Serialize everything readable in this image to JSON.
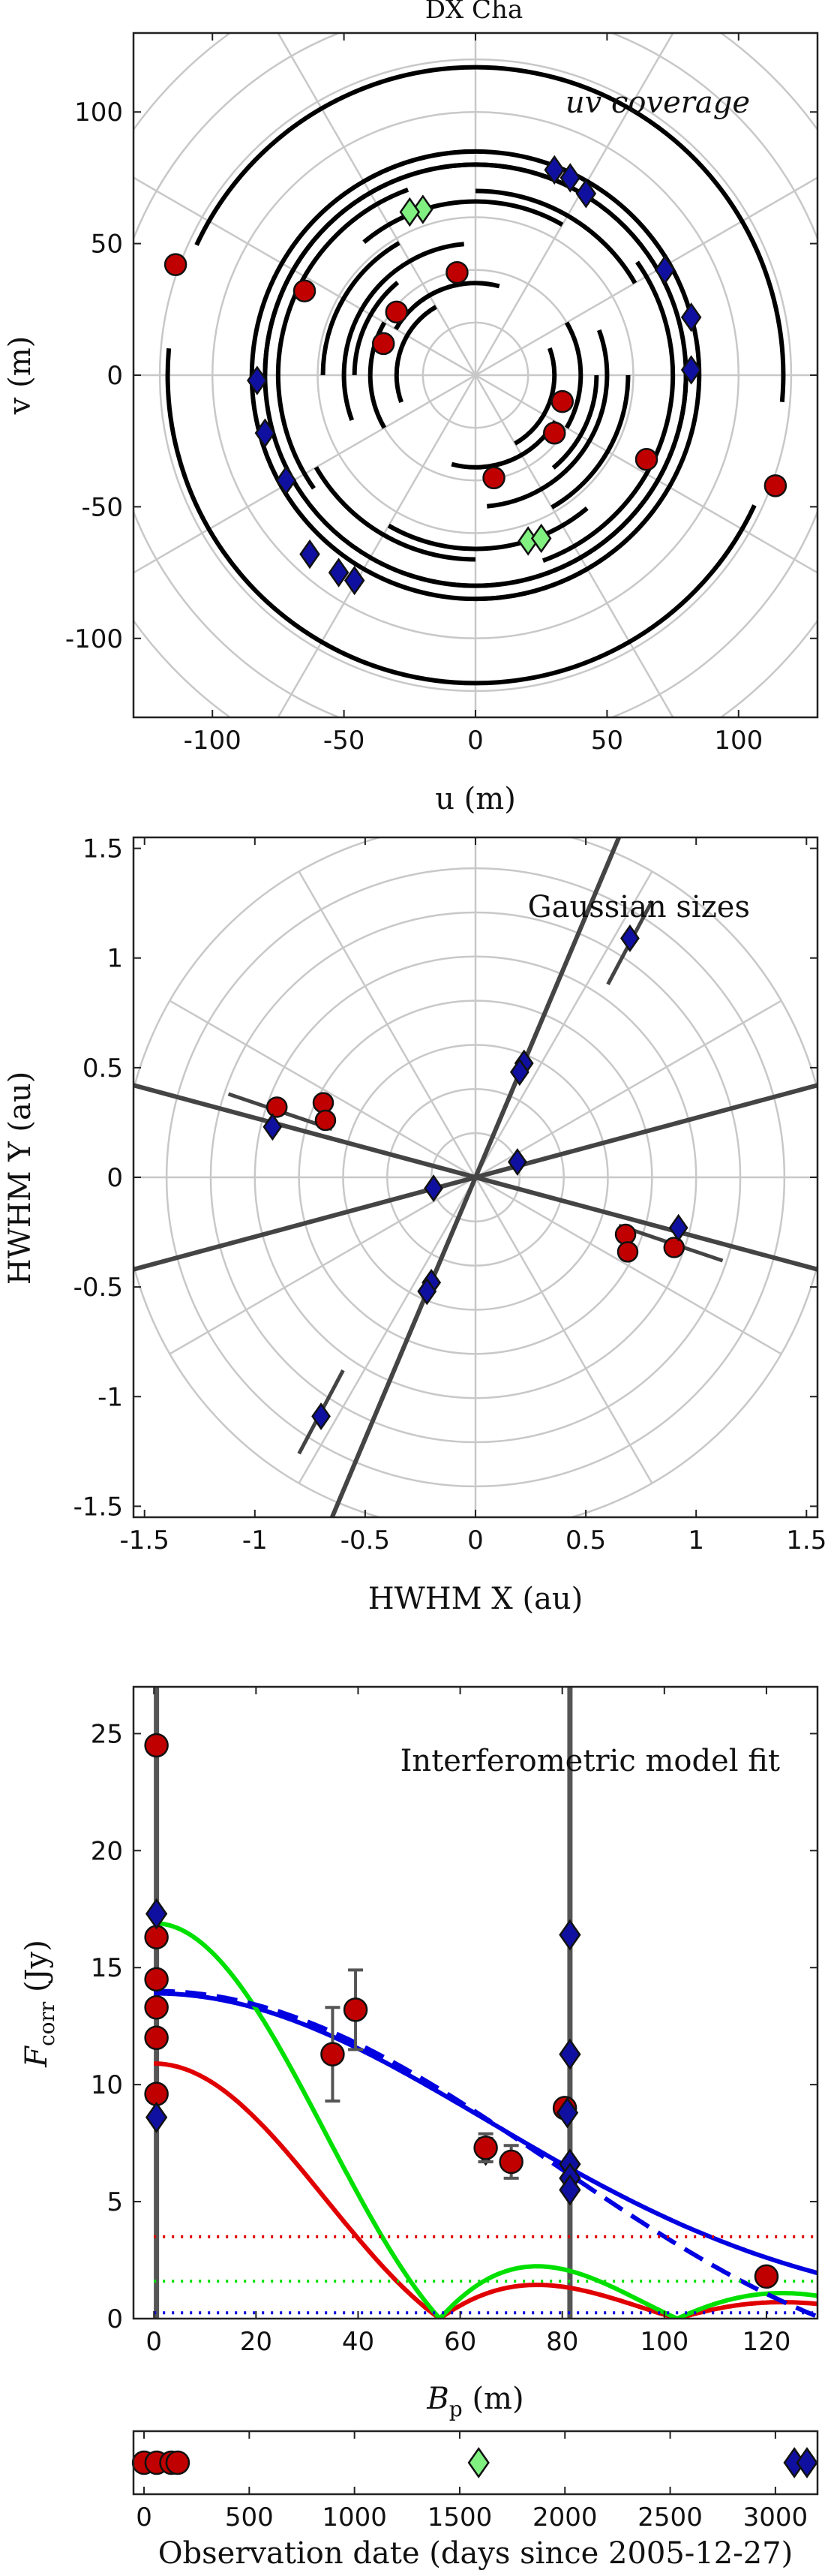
{
  "figure_title": "DX Cha",
  "chart_data": [
    {
      "type": "scatter",
      "annotation": "uv coverage",
      "xlabel": "u (m)",
      "ylabel": "v (m)",
      "xlim": [
        -130,
        130
      ],
      "ylim": [
        -130,
        130
      ],
      "xticks": [
        -100,
        -50,
        0,
        50,
        100
      ],
      "yticks": [
        -100,
        -50,
        0,
        50,
        100
      ],
      "polar_grid": true,
      "tracks": [
        {
          "radius": 117,
          "start_deg": 175,
          "end_deg": 335
        },
        {
          "radius": 85,
          "start_deg": 90,
          "end_deg": 300
        },
        {
          "radius": 80,
          "start_deg": 70,
          "end_deg": 360
        },
        {
          "radius": 75,
          "start_deg": 110,
          "end_deg": 215
        },
        {
          "radius": 70,
          "start_deg": 210,
          "end_deg": 270
        },
        {
          "radius": 66,
          "start_deg": 60,
          "end_deg": 130
        },
        {
          "radius": 58,
          "start_deg": 300,
          "end_deg": 360
        },
        {
          "radius": 50,
          "start_deg": 95,
          "end_deg": 200
        },
        {
          "radius": 46,
          "start_deg": 310,
          "end_deg": 360
        },
        {
          "radius": 40,
          "start_deg": 150,
          "end_deg": 210
        },
        {
          "radius": 35,
          "start_deg": 255,
          "end_deg": 330
        },
        {
          "radius": 30,
          "start_deg": 120,
          "end_deg": 200
        }
      ],
      "series": [
        {
          "marker": "circle",
          "color": "#c00000",
          "points": [
            [
              -114,
              42
            ],
            [
              -65,
              32
            ],
            [
              -35,
              12
            ],
            [
              -30,
              24
            ],
            [
              -7,
              39
            ],
            [
              33,
              -10
            ],
            [
              30,
              -22
            ],
            [
              7,
              -39
            ],
            [
              65,
              -32
            ],
            [
              114,
              -42
            ]
          ]
        },
        {
          "marker": "diamond",
          "color": "#1010a0",
          "points": [
            [
              -83,
              -2
            ],
            [
              -80,
              -22
            ],
            [
              -72,
              -40
            ],
            [
              -63,
              -68
            ],
            [
              -52,
              -75
            ],
            [
              -46,
              -78
            ],
            [
              30,
              78
            ],
            [
              36,
              75
            ],
            [
              42,
              69
            ],
            [
              72,
              40
            ],
            [
              82,
              22
            ],
            [
              82,
              2
            ]
          ]
        },
        {
          "marker": "diamond",
          "color": "#80f080",
          "points": [
            [
              -20,
              63
            ],
            [
              -25,
              62
            ],
            [
              20,
              -63
            ],
            [
              25,
              -62
            ]
          ]
        }
      ]
    },
    {
      "type": "scatter",
      "annotation": "Gaussian sizes",
      "xlabel": "HWHM X (au)",
      "ylabel": "HWHM Y (au)",
      "xlim": [
        -1.55,
        1.55
      ],
      "ylim": [
        -1.55,
        1.55
      ],
      "xticks": [
        -1.5,
        -1,
        -0.5,
        0,
        0.5,
        1,
        1.5
      ],
      "yticks": [
        -1.5,
        -1,
        -0.5,
        0,
        0.5,
        1,
        1.5
      ],
      "polar_grid": true,
      "lines": [
        {
          "x1": -0.65,
          "y1": -1.55,
          "x2": 0.65,
          "y2": 1.55
        },
        {
          "x1": -1.55,
          "y1": 0.42,
          "x2": 1.55,
          "y2": -0.42
        },
        {
          "x1": -1.55,
          "y1": -0.42,
          "x2": 1.55,
          "y2": 0.42
        }
      ],
      "segments": [
        {
          "x1": 0.6,
          "y1": 0.88,
          "x2": 0.8,
          "y2": 1.26
        },
        {
          "x1": -0.6,
          "y1": -0.88,
          "x2": -0.8,
          "y2": -1.26
        },
        {
          "x1": -1.12,
          "y1": 0.38,
          "x2": -0.65,
          "y2": 0.22
        },
        {
          "x1": 1.12,
          "y1": -0.38,
          "x2": 0.65,
          "y2": -0.22
        }
      ],
      "series": [
        {
          "marker": "circle",
          "color": "#c00000",
          "points": [
            [
              -0.9,
              0.32
            ],
            [
              -0.69,
              0.34
            ],
            [
              -0.68,
              0.26
            ],
            [
              0.68,
              -0.26
            ],
            [
              0.69,
              -0.34
            ],
            [
              0.9,
              -0.32
            ]
          ]
        },
        {
          "marker": "diamond",
          "color": "#1010a0",
          "points": [
            [
              0.7,
              1.09
            ],
            [
              -0.7,
              -1.09
            ],
            [
              0.22,
              0.52
            ],
            [
              0.2,
              0.48
            ],
            [
              -0.2,
              -0.48
            ],
            [
              -0.22,
              -0.52
            ],
            [
              -0.92,
              0.23
            ],
            [
              0.92,
              -0.23
            ],
            [
              -0.19,
              -0.05
            ],
            [
              0.19,
              0.07
            ]
          ]
        }
      ]
    },
    {
      "type": "line",
      "annotation": "Interferometric model fit",
      "xlabel": "B_p (m)",
      "ylabel": "F_corr (Jy)",
      "xlim": [
        -4,
        130
      ],
      "ylim": [
        0,
        27
      ],
      "xticks": [
        0,
        20,
        40,
        60,
        80,
        100,
        120
      ],
      "yticks": [
        0,
        5,
        10,
        15,
        20,
        25
      ],
      "vertical_lines": [
        0.5,
        81.5
      ],
      "series": [
        {
          "name": "",
          "color": "#0000e0",
          "style": "solid",
          "fn": "gauss",
          "params": {
            "amp": 13.9,
            "scale": 88
          }
        },
        {
          "name": "",
          "color": "#e00000",
          "style": "solid",
          "fn": "bessel",
          "params": {
            "amp": 10.9,
            "scale": 56
          }
        },
        {
          "name": "",
          "color": "#00e000",
          "style": "solid",
          "fn": "bessel",
          "params": {
            "amp": 16.9,
            "scale": 56
          }
        },
        {
          "name": "",
          "color": "#0000e0",
          "style": "dashed",
          "fn": "bessel",
          "params": {
            "amp": 14.0,
            "scale": 131
          }
        },
        {
          "name": "",
          "color": "#e00000",
          "style": "dotted",
          "fn": "const",
          "params": {
            "value": 3.5
          }
        },
        {
          "name": "",
          "color": "#00e000",
          "style": "dotted",
          "fn": "const",
          "params": {
            "value": 1.6
          }
        },
        {
          "name": "",
          "color": "#0000e0",
          "style": "dotted",
          "fn": "const",
          "params": {
            "value": 0.25
          }
        }
      ],
      "points": [
        {
          "marker": "circle",
          "color": "#c00000",
          "x": 0.5,
          "y": 24.5,
          "err": 0
        },
        {
          "marker": "circle",
          "color": "#c00000",
          "x": 0.5,
          "y": 16.3,
          "err": 0
        },
        {
          "marker": "circle",
          "color": "#c00000",
          "x": 0.5,
          "y": 14.5,
          "err": 0
        },
        {
          "marker": "circle",
          "color": "#c00000",
          "x": 0.5,
          "y": 13.3,
          "err": 0
        },
        {
          "marker": "circle",
          "color": "#c00000",
          "x": 0.5,
          "y": 12.0,
          "err": 0
        },
        {
          "marker": "circle",
          "color": "#c00000",
          "x": 0.5,
          "y": 9.6,
          "err": 0
        },
        {
          "marker": "diamond",
          "color": "#1010a0",
          "x": 0.5,
          "y": 17.3,
          "err": 0
        },
        {
          "marker": "diamond",
          "color": "#1010a0",
          "x": 0.5,
          "y": 8.6,
          "err": 0
        },
        {
          "marker": "circle",
          "color": "#c00000",
          "x": 35,
          "y": 11.3,
          "err": 2.0
        },
        {
          "marker": "circle",
          "color": "#c00000",
          "x": 39.5,
          "y": 13.2,
          "err": 1.7
        },
        {
          "marker": "diamond",
          "color": "#1010a0",
          "x": 65,
          "y": 7.2,
          "err": 0.5
        },
        {
          "marker": "diamond",
          "color": "#80f080",
          "x": 65,
          "y": 7.2,
          "err": 0.5
        },
        {
          "marker": "circle",
          "color": "#c00000",
          "x": 65,
          "y": 7.3,
          "err": 0.6
        },
        {
          "marker": "circle",
          "color": "#c00000",
          "x": 70,
          "y": 6.7,
          "err": 0.7
        },
        {
          "marker": "circle",
          "color": "#c00000",
          "x": 80.5,
          "y": 9.0,
          "err": 0.3
        },
        {
          "marker": "diamond",
          "color": "#1010a0",
          "x": 81,
          "y": 8.8,
          "err": 0
        },
        {
          "marker": "diamond",
          "color": "#1010a0",
          "x": 81.5,
          "y": 16.4,
          "err": 0
        },
        {
          "marker": "diamond",
          "color": "#1010a0",
          "x": 81.5,
          "y": 11.3,
          "err": 0
        },
        {
          "marker": "diamond",
          "color": "#1010a0",
          "x": 81.5,
          "y": 6.6,
          "err": 0
        },
        {
          "marker": "diamond",
          "color": "#1010a0",
          "x": 81.5,
          "y": 6.0,
          "err": 0
        },
        {
          "marker": "diamond",
          "color": "#1010a0",
          "x": 81.5,
          "y": 5.5,
          "err": 0
        },
        {
          "marker": "circle",
          "color": "#c00000",
          "x": 120,
          "y": 1.8,
          "err": 0
        }
      ]
    },
    {
      "type": "scatter",
      "xlabel": "Observation date (days since 2005-12-27)",
      "xlim": [
        -50,
        3200
      ],
      "xticks": [
        0,
        500,
        1000,
        1500,
        2000,
        2500,
        3000
      ],
      "points": [
        {
          "marker": "circle",
          "color": "#c00000",
          "x": 0
        },
        {
          "marker": "circle",
          "color": "#c00000",
          "x": 60
        },
        {
          "marker": "circle",
          "color": "#c00000",
          "x": 130
        },
        {
          "marker": "circle",
          "color": "#c00000",
          "x": 160
        },
        {
          "marker": "diamond",
          "color": "#80f080",
          "x": 1590
        },
        {
          "marker": "diamond",
          "color": "#1010a0",
          "x": 3090
        },
        {
          "marker": "diamond",
          "color": "#1010a0",
          "x": 3150
        }
      ]
    }
  ]
}
